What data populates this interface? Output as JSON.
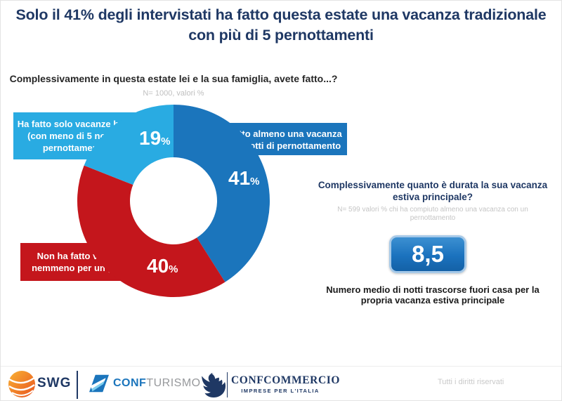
{
  "title": {
    "line1": "Solo il 41% degli intervistati ha fatto questa estate una vacanza tradizionale",
    "line2": "con più di 5 pernottamenti"
  },
  "chart_data": {
    "type": "pie",
    "donut": true,
    "title": "Complessivamente in questa estate lei e la sua famiglia, avete fatto...?",
    "note": "N= 1000, valori %",
    "unit": "%",
    "start_angle_deg": 0,
    "direction": "clockwise",
    "slices": [
      {
        "name": "vacanza-5-notti",
        "label": "Ha fatto almeno una vacanza\ncon 5 notti di pernottamento",
        "value": 41,
        "color": "#1B75BC"
      },
      {
        "name": "nessuna-vacanza",
        "label": "Non ha fatto vacanze,\nnemmeno per un giorno",
        "value": 40,
        "color": "#C4161C"
      },
      {
        "name": "vacanze-brevi",
        "label": "Ha fatto solo vacanze brevi\n(con meno di 5 notti di\npernottamento)",
        "value": 19,
        "color": "#29ABE2"
      }
    ]
  },
  "right_panel": {
    "question": "Complessivamente quanto è durata la sua vacanza estiva principale?",
    "note": "N= 599 valori % chi ha compiuto almeno una vacanza con un pernottamento",
    "value": "8,5",
    "caption": "Numero medio di notti trascorse fuori casa per la propria vacanza estiva principale"
  },
  "footer": {
    "swg_label": "SWG",
    "confturismo_part1": "CONF",
    "confturismo_part2": "TURISMO",
    "confcommercio_name": "CONFCOMMERCIO",
    "confcommercio_tagline": "IMPRESE PER L'ITALIA",
    "rights": "Tutti i diritti riservati"
  },
  "colors": {
    "navy": "#1F3864",
    "blue": "#1B75BC",
    "light_blue": "#29ABE2",
    "red": "#C4161C",
    "note_gray": "#BFBFBF"
  }
}
